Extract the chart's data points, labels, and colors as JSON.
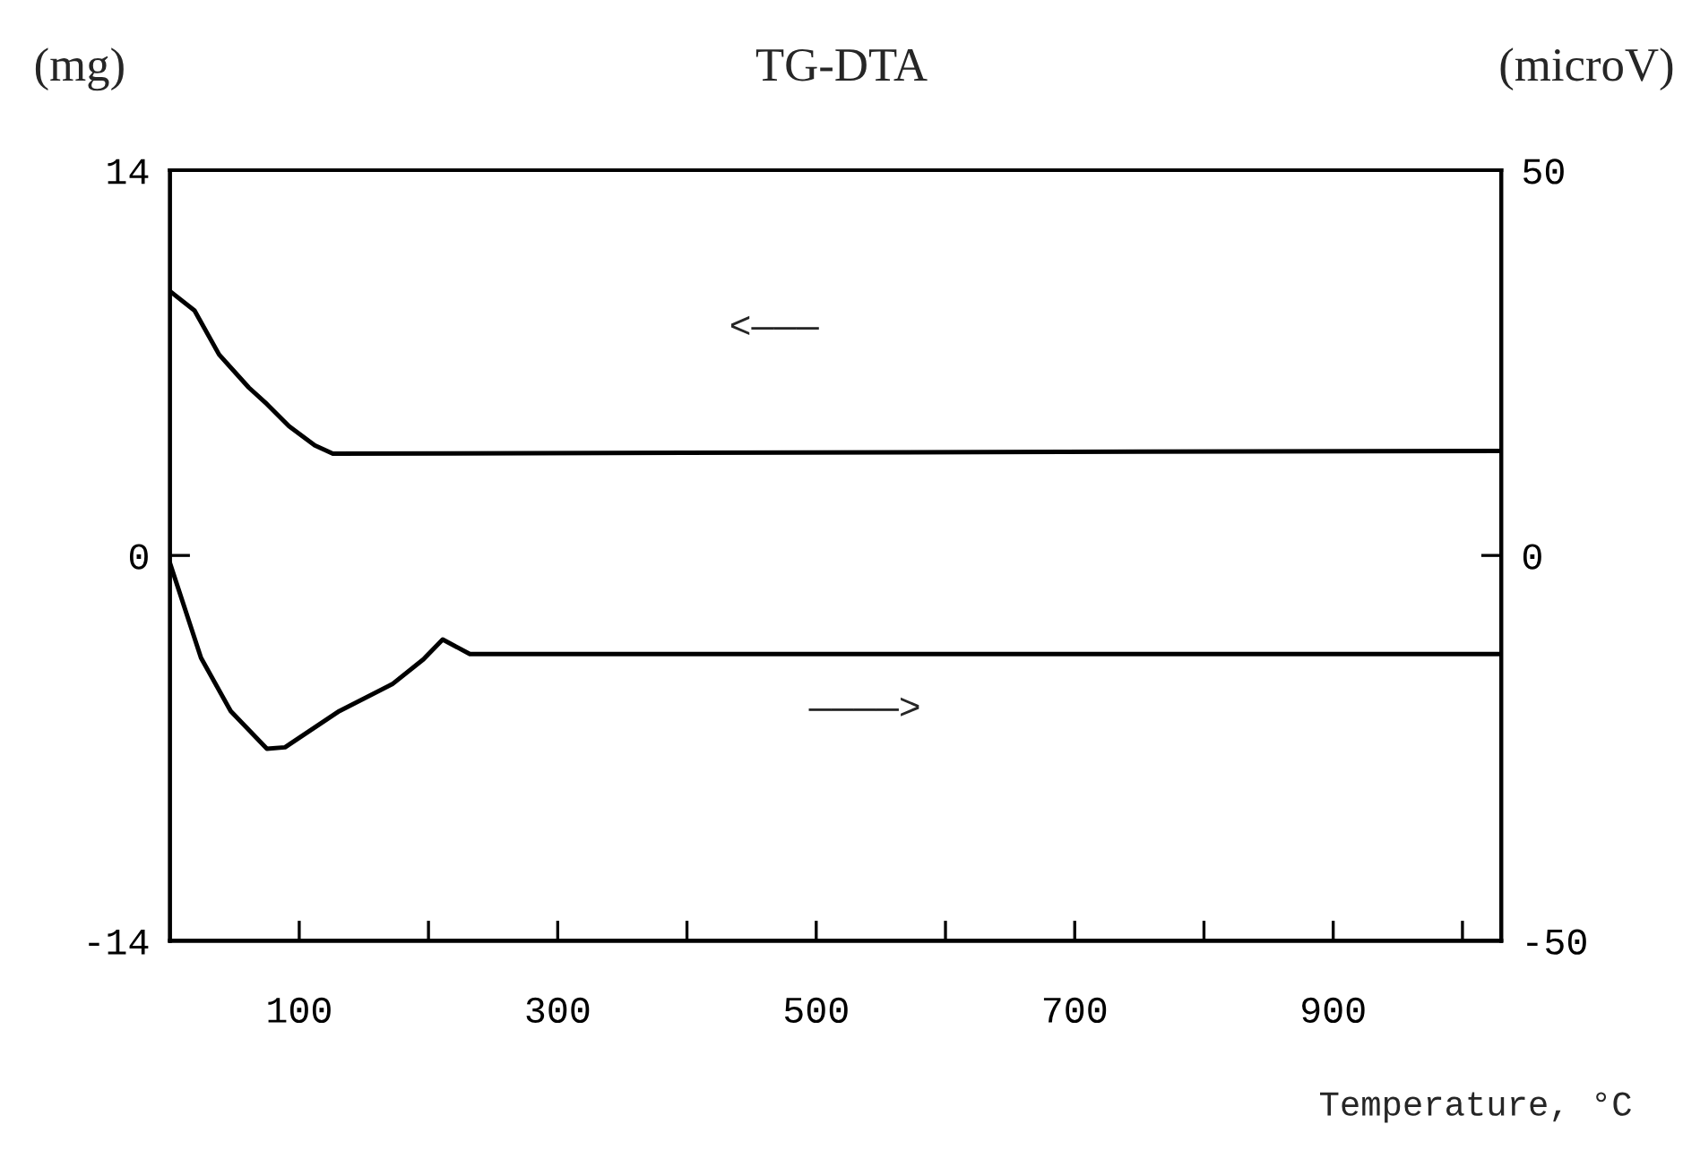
{
  "chart_data": {
    "type": "line",
    "title": "TG-DTA",
    "xlabel": "Temperature, °C",
    "ylabel": "(mg)",
    "y2label": "(microV)",
    "xlim": [
      0,
      1030
    ],
    "xticks": [
      {
        "value": 100,
        "label": "100"
      },
      {
        "value": 200,
        "label": null
      },
      {
        "value": 300,
        "label": "300"
      },
      {
        "value": 400,
        "label": null
      },
      {
        "value": 500,
        "label": "500"
      },
      {
        "value": 600,
        "label": null
      },
      {
        "value": 700,
        "label": "700"
      },
      {
        "value": 800,
        "label": null
      },
      {
        "value": 900,
        "label": "900"
      },
      {
        "value": 1000,
        "label": null
      }
    ],
    "ylim": [
      -14,
      14
    ],
    "yticks": [
      -14,
      0,
      14
    ],
    "y2lim": [
      -50,
      50
    ],
    "y2ticks": [
      -50,
      0,
      50
    ],
    "series": [
      {
        "color": "#000000",
        "x": [
          0,
          19,
          38,
          61,
          75,
          92,
          112,
          126,
          1030
        ],
        "values": [
          9.6,
          8.9,
          7.3,
          6.1,
          5.5,
          4.7,
          4.0,
          3.7,
          3.8
        ]
      },
      {
        "color": "#000000",
        "axis": "y2",
        "x": [
          0,
          24,
          47,
          75,
          89,
          131,
          172,
          196,
          211,
          232,
          1030
        ],
        "values": [
          -1,
          -13.3,
          -20.2,
          -25.1,
          -24.9,
          -20.2,
          -16.7,
          -13.5,
          -10.9,
          -12.8,
          -12.8
        ]
      }
    ],
    "annotations": [
      "<———",
      "————>"
    ],
    "grid": false,
    "marker": "none",
    "line_style": "solid"
  }
}
